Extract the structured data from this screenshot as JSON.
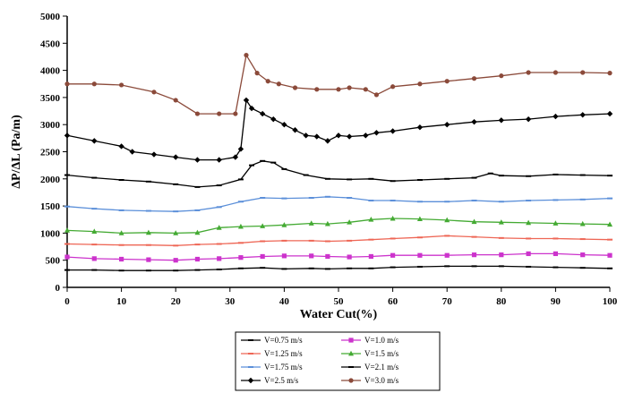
{
  "chart_data": {
    "type": "line",
    "title": "",
    "xlabel": "Water Cut(%)",
    "ylabel": "ΔP/ΔL (Pa/m)",
    "xlim": [
      0,
      100
    ],
    "ylim": [
      0,
      5000
    ],
    "xticks": [
      0,
      10,
      20,
      30,
      40,
      50,
      60,
      70,
      80,
      90,
      100
    ],
    "yticks": [
      0,
      500,
      1000,
      1500,
      2000,
      2500,
      3000,
      3500,
      4000,
      4500,
      5000
    ],
    "grid": false,
    "legend_position": "bottom-center",
    "series": [
      {
        "name": "V=0.75 m/s",
        "color": "#000000",
        "marker": "dash",
        "x": [
          0,
          5,
          10,
          15,
          20,
          24,
          28,
          32,
          36,
          40,
          45,
          48,
          52,
          56,
          60,
          65,
          70,
          75,
          80,
          85,
          90,
          95,
          100
        ],
        "y": [
          320,
          320,
          310,
          310,
          310,
          320,
          330,
          350,
          360,
          340,
          350,
          340,
          350,
          350,
          370,
          380,
          390,
          390,
          390,
          380,
          370,
          360,
          350
        ]
      },
      {
        "name": "V=1.0 m/s",
        "color": "#cc33cc",
        "marker": "square",
        "x": [
          0,
          5,
          10,
          15,
          20,
          24,
          28,
          32,
          36,
          40,
          45,
          48,
          52,
          56,
          60,
          65,
          70,
          75,
          80,
          85,
          90,
          95,
          100
        ],
        "y": [
          560,
          530,
          520,
          510,
          500,
          520,
          530,
          550,
          570,
          580,
          580,
          570,
          560,
          570,
          590,
          590,
          590,
          600,
          600,
          620,
          620,
          600,
          590
        ]
      },
      {
        "name": "V=1.25 m/s",
        "color": "#ee6655",
        "marker": "dash",
        "x": [
          0,
          5,
          10,
          15,
          20,
          24,
          28,
          32,
          36,
          40,
          45,
          48,
          52,
          56,
          60,
          65,
          70,
          75,
          80,
          85,
          90,
          95,
          100
        ],
        "y": [
          800,
          790,
          780,
          780,
          770,
          790,
          800,
          820,
          850,
          860,
          860,
          850,
          860,
          880,
          900,
          920,
          950,
          930,
          910,
          900,
          900,
          890,
          880
        ]
      },
      {
        "name": "V=1.5 m/s",
        "color": "#44aa33",
        "marker": "triangle",
        "x": [
          0,
          5,
          10,
          15,
          20,
          24,
          28,
          32,
          36,
          40,
          45,
          48,
          52,
          56,
          60,
          65,
          70,
          75,
          80,
          85,
          90,
          95,
          100
        ],
        "y": [
          1050,
          1030,
          1000,
          1010,
          1000,
          1010,
          1100,
          1120,
          1130,
          1150,
          1180,
          1170,
          1200,
          1250,
          1270,
          1260,
          1240,
          1210,
          1200,
          1190,
          1180,
          1170,
          1160
        ]
      },
      {
        "name": "V=1.75 m/s",
        "color": "#5b8fd9",
        "marker": "dash",
        "x": [
          0,
          5,
          10,
          15,
          20,
          24,
          28,
          32,
          36,
          40,
          45,
          48,
          52,
          56,
          60,
          65,
          70,
          75,
          80,
          85,
          90,
          95,
          100
        ],
        "y": [
          1490,
          1450,
          1420,
          1410,
          1400,
          1420,
          1480,
          1580,
          1650,
          1640,
          1650,
          1670,
          1650,
          1600,
          1600,
          1580,
          1580,
          1600,
          1580,
          1600,
          1610,
          1620,
          1640
        ]
      },
      {
        "name": "V=2.1 m/s",
        "color": "#000000",
        "marker": "dash",
        "x": [
          0,
          5,
          10,
          15,
          20,
          24,
          28,
          32,
          34,
          36,
          38,
          40,
          44,
          48,
          52,
          56,
          60,
          65,
          70,
          75,
          78,
          80,
          85,
          90,
          95,
          100
        ],
        "y": [
          2070,
          2020,
          1980,
          1950,
          1900,
          1850,
          1880,
          1990,
          2250,
          2330,
          2300,
          2180,
          2070,
          2000,
          1990,
          2000,
          1960,
          1980,
          2000,
          2020,
          2100,
          2060,
          2050,
          2080,
          2070,
          2060
        ]
      },
      {
        "name": "V=2.5 m/s",
        "color": "#000000",
        "marker": "diamond",
        "x": [
          0,
          5,
          10,
          12,
          16,
          20,
          24,
          28,
          31,
          32,
          33,
          34,
          36,
          38,
          40,
          42,
          44,
          46,
          48,
          50,
          52,
          55,
          57,
          60,
          65,
          70,
          75,
          80,
          85,
          90,
          95,
          100
        ],
        "y": [
          2800,
          2700,
          2600,
          2500,
          2450,
          2400,
          2350,
          2350,
          2400,
          2550,
          3450,
          3300,
          3200,
          3100,
          3000,
          2900,
          2800,
          2780,
          2700,
          2800,
          2780,
          2800,
          2850,
          2880,
          2950,
          3000,
          3050,
          3080,
          3100,
          3150,
          3180,
          3200
        ]
      },
      {
        "name": "V=3.0 m/s",
        "color": "#8b4a3a",
        "marker": "circle",
        "x": [
          0,
          5,
          10,
          16,
          20,
          24,
          28,
          31,
          33,
          35,
          37,
          39,
          42,
          46,
          50,
          52,
          55,
          57,
          60,
          65,
          70,
          75,
          80,
          85,
          90,
          95,
          100
        ],
        "y": [
          3750,
          3750,
          3730,
          3600,
          3450,
          3200,
          3200,
          3200,
          4280,
          3950,
          3800,
          3750,
          3680,
          3650,
          3650,
          3680,
          3650,
          3550,
          3700,
          3750,
          3800,
          3850,
          3900,
          3960,
          3960,
          3960,
          3950
        ]
      }
    ]
  }
}
